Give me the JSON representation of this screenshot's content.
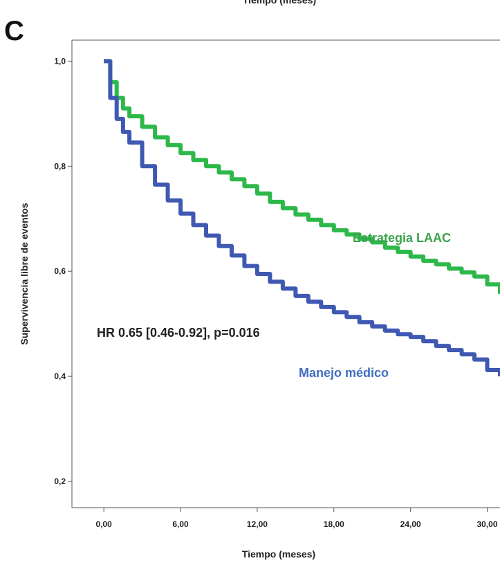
{
  "header_cut_text": "Tiempo (meses)",
  "panel_label": "C",
  "chart_data": {
    "type": "line",
    "xlabel": "Tiempo (meses)",
    "ylabel": "Supervivencia libre de eventos",
    "xlim": [
      -2.5,
      31
    ],
    "ylim": [
      0.15,
      1.04
    ],
    "x_ticks": [
      0,
      6,
      12,
      18,
      24,
      30
    ],
    "x_tick_labels": [
      "0,00",
      "6,00",
      "12,00",
      "18,00",
      "24,00",
      "30,00"
    ],
    "y_ticks": [
      0.2,
      0.4,
      0.6,
      0.8,
      1.0
    ],
    "y_tick_labels": [
      "0,2",
      "0,4",
      "0,6",
      "0,8",
      "1,0"
    ],
    "grid": false,
    "series": [
      {
        "name": "Estrategia LAAC",
        "color": "#2db84a",
        "x": [
          0,
          0.5,
          1,
          1.5,
          2,
          3,
          4,
          5,
          6,
          7,
          8,
          9,
          10,
          11,
          12,
          13,
          14,
          15,
          16,
          17,
          18,
          19,
          20,
          21,
          22,
          23,
          24,
          25,
          26,
          27,
          28,
          29,
          30,
          31
        ],
        "y": [
          1.0,
          0.96,
          0.93,
          0.91,
          0.895,
          0.875,
          0.855,
          0.84,
          0.825,
          0.812,
          0.8,
          0.788,
          0.775,
          0.762,
          0.748,
          0.732,
          0.72,
          0.708,
          0.698,
          0.688,
          0.678,
          0.67,
          0.662,
          0.655,
          0.645,
          0.637,
          0.628,
          0.62,
          0.613,
          0.605,
          0.598,
          0.59,
          0.575,
          0.557
        ]
      },
      {
        "name": "Manejo médico",
        "color": "#3f59b2",
        "x": [
          0,
          0.5,
          1,
          1.5,
          2,
          3,
          4,
          5,
          6,
          7,
          8,
          9,
          10,
          11,
          12,
          13,
          14,
          15,
          16,
          17,
          18,
          19,
          20,
          21,
          22,
          23,
          24,
          25,
          26,
          27,
          28,
          29,
          30,
          31
        ],
        "y": [
          1.0,
          0.93,
          0.89,
          0.865,
          0.845,
          0.8,
          0.765,
          0.735,
          0.71,
          0.688,
          0.668,
          0.648,
          0.63,
          0.61,
          0.595,
          0.58,
          0.567,
          0.553,
          0.542,
          0.532,
          0.522,
          0.513,
          0.503,
          0.495,
          0.487,
          0.48,
          0.475,
          0.467,
          0.458,
          0.45,
          0.442,
          0.432,
          0.412,
          0.4
        ]
      }
    ],
    "annotations": {
      "hr_text": "HR 0.65 [0.46-0.92], p=0.016",
      "laac_label": "Estrategia LAAC",
      "medico_label": "Manejo médico"
    }
  }
}
